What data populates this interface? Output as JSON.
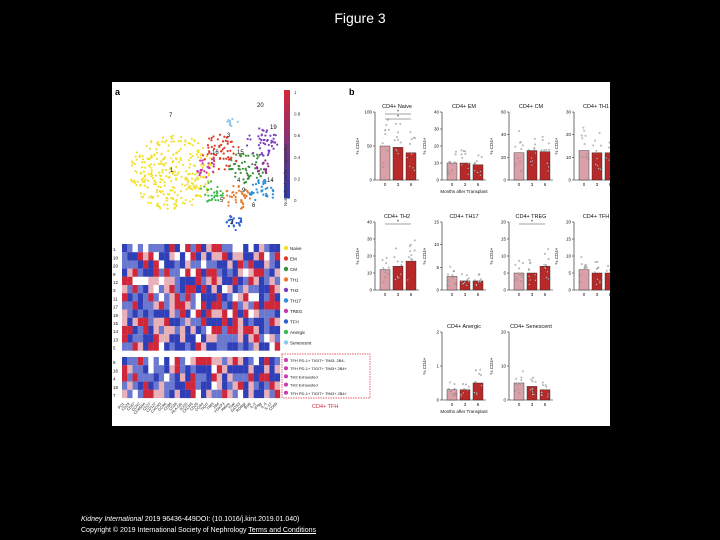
{
  "slide": {
    "title": "Figure 3"
  },
  "figure": {
    "panel_a_label": "a",
    "panel_b_label": "b",
    "tsne_cluster_labels": [
      "7",
      "20",
      "19",
      "3",
      "16",
      "15",
      "1",
      "14",
      "4",
      "2",
      "5",
      "9",
      "6"
    ],
    "colorbar_label": "Normalized median expression",
    "colorbar_ticks": [
      "1",
      "0.8",
      "0.6",
      "0.4",
      "0.2",
      "0"
    ],
    "cluster_rows_top": [
      "1",
      "10",
      "20",
      "9",
      "12",
      "3",
      "11",
      "17",
      "19",
      "15",
      "14",
      "13",
      "5"
    ],
    "cluster_rows_bottom": [
      "8",
      "16",
      "4",
      "18",
      "7"
    ],
    "subset_labels_top": [
      "Naive",
      "EM",
      "CM",
      "TH1",
      "TH2",
      "TH17",
      "TREG",
      "TFH",
      "Anergic",
      "Senescent"
    ],
    "subset_labels_bottom": [
      "TFH PD-1+ TIGIT+ TIM3- 2B4-",
      "TFH PD-1+ TIGIT+ TIM3+ 2B4+",
      "TH2 Exhausted",
      "TH2 Exhausted",
      "TFH PD-1+ TIGIT+ TIM3+ 2B4+"
    ],
    "tfh_bracket_label": "CD4+ TFH",
    "marker_labels": [
      "PD1",
      "CD28",
      "CD57",
      "CCR7",
      "CD45RA",
      "CD27",
      "CD127",
      "CXCR3",
      "CCR6",
      "CD95",
      "CD38",
      "HLA-DR",
      "ICOS",
      "CXCR5",
      "CD25",
      "CCR4",
      "TIGIT",
      "TIM3",
      "2B4",
      "FOXP3",
      "Helios",
      "Tbet",
      "GATA3",
      "RORgt",
      "Bcl6",
      "IL-2",
      "IFNg",
      "IL-4",
      "IL-17",
      "CD69"
    ],
    "x_axis_title": "Months after Transplant",
    "x_ticks": [
      "0",
      "3",
      "6"
    ]
  },
  "chart_data": [
    {
      "type": "bar",
      "title": "CD4+ Naive",
      "categories": [
        "0",
        "3",
        "6"
      ],
      "values": [
        50,
        48,
        40
      ],
      "ylim": [
        0,
        100
      ],
      "yticks": [
        "0",
        "50",
        "100"
      ],
      "ylabel": "% CD4+",
      "xlabel": "Months after Transplant",
      "significance": [
        "*",
        "*"
      ]
    },
    {
      "type": "bar",
      "title": "CD4+ EM",
      "categories": [
        "0",
        "3",
        "6"
      ],
      "values": [
        10,
        10,
        9
      ],
      "ylim": [
        0,
        40
      ],
      "yticks": [
        "0",
        "10",
        "20",
        "30",
        "40"
      ],
      "ylabel": "% CD4+",
      "xlabel": "Months after Transplant"
    },
    {
      "type": "bar",
      "title": "CD4+ CM",
      "categories": [
        "0",
        "3",
        "6"
      ],
      "values": [
        24,
        26,
        25
      ],
      "ylim": [
        0,
        60
      ],
      "yticks": [
        "0",
        "20",
        "40",
        "60"
      ],
      "ylabel": "% CD4+",
      "xlabel": "Months after Transplant"
    },
    {
      "type": "bar",
      "title": "CD4+ TH1",
      "categories": [
        "0",
        "3",
        "6"
      ],
      "values": [
        13,
        12,
        12
      ],
      "ylim": [
        0,
        30
      ],
      "yticks": [
        "0",
        "10",
        "20",
        "30"
      ],
      "ylabel": "% CD4+",
      "xlabel": "Months after Transplant"
    },
    {
      "type": "bar",
      "title": "CD4+ TH2",
      "categories": [
        "0",
        "3",
        "6"
      ],
      "values": [
        12,
        14,
        17
      ],
      "ylim": [
        0,
        40
      ],
      "yticks": [
        "0",
        "10",
        "20",
        "30",
        "40"
      ],
      "ylabel": "% CD4+",
      "xlabel": "Months after Transplant",
      "significance": [
        "*"
      ]
    },
    {
      "type": "bar",
      "title": "CD4+ TH17",
      "categories": [
        "0",
        "3",
        "6"
      ],
      "values": [
        3,
        2,
        2
      ],
      "ylim": [
        0,
        15
      ],
      "yticks": [
        "0",
        "5",
        "10",
        "15"
      ],
      "ylabel": "% CD4+",
      "xlabel": "Months after Transplant"
    },
    {
      "type": "bar",
      "title": "CD4+ TREG",
      "categories": [
        "0",
        "3",
        "6"
      ],
      "values": [
        5,
        5,
        7
      ],
      "ylim": [
        0,
        20
      ],
      "yticks": [
        "0",
        "5",
        "10",
        "15",
        "20"
      ],
      "ylabel": "% CD4+",
      "xlabel": "Months after Transplant",
      "significance": [
        "*"
      ]
    },
    {
      "type": "bar",
      "title": "CD4+ TFH",
      "categories": [
        "0",
        "3",
        "6"
      ],
      "values": [
        6,
        5,
        5
      ],
      "ylim": [
        0,
        20
      ],
      "yticks": [
        "0",
        "5",
        "10",
        "15",
        "20"
      ],
      "ylabel": "% CD4+",
      "xlabel": "Months after Transplant"
    },
    {
      "type": "bar",
      "title": "CD4+ Anergic",
      "categories": [
        "0",
        "3",
        "6"
      ],
      "values": [
        0.3,
        0.3,
        0.5
      ],
      "ylim": [
        0,
        2
      ],
      "yticks": [
        "0",
        "1",
        "2"
      ],
      "ylabel": "% CD4+",
      "xlabel": "Months after Transplant"
    },
    {
      "type": "bar",
      "title": "CD4+ Senescent",
      "categories": [
        "0",
        "3",
        "6"
      ],
      "values": [
        5,
        4,
        3
      ],
      "ylim": [
        0,
        20
      ],
      "yticks": [
        "0",
        "10",
        "20"
      ],
      "ylabel": "% CD4+",
      "xlabel": "Months after Transplant"
    }
  ],
  "colors": {
    "naive": "#d9a0a8",
    "treated": "#b82a2a",
    "heat_low": "#2f3fb8",
    "heat_high": "#d0283a"
  },
  "footer": {
    "journal": "Kidney International",
    "citation": " 2019 96436-449DOI: (10.1016/j.kint.2019.01.040)",
    "copyright": "Copyright © 2019 International Society of Nephrology ",
    "terms_link": "Terms and Conditions"
  }
}
